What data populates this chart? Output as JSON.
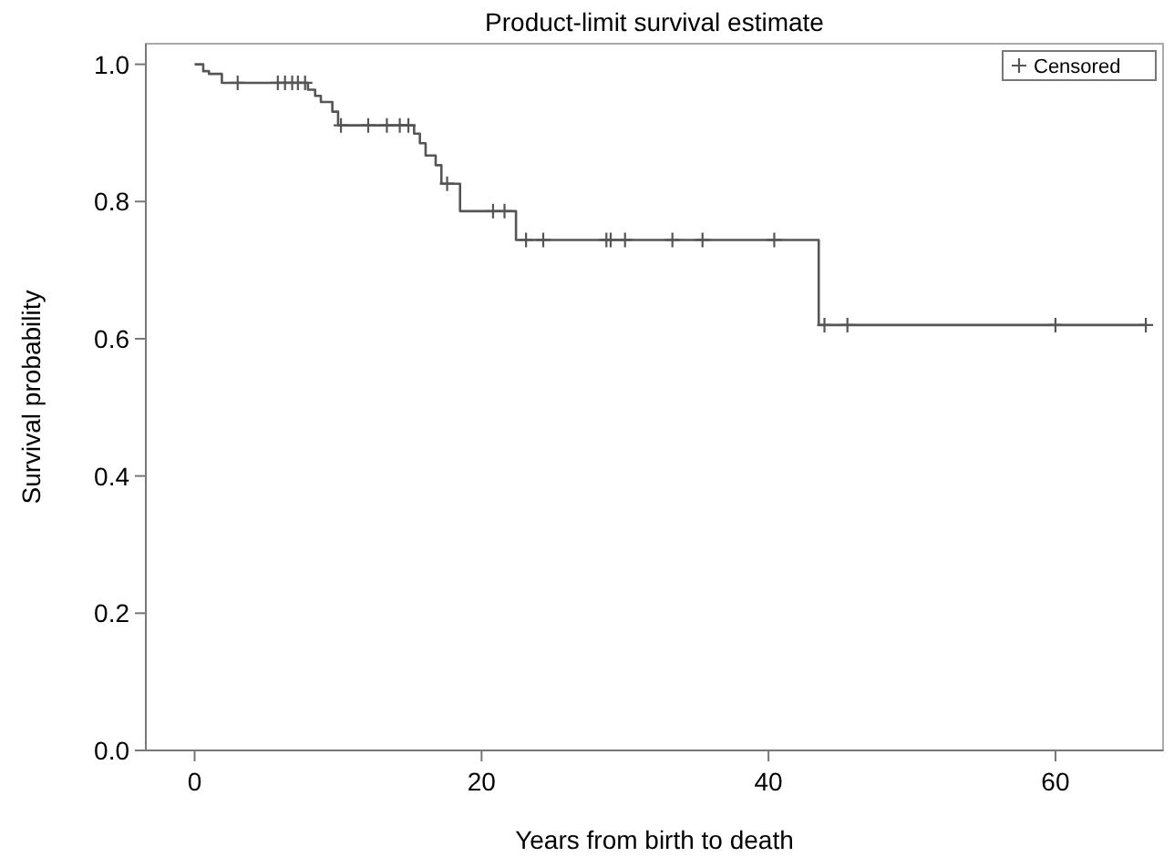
{
  "chart_data": {
    "type": "step",
    "title": "Product-limit survival estimate",
    "xlabel": "Years from birth to death",
    "ylabel": "Survival probability",
    "xlim": [
      -3.4,
      67.5
    ],
    "xticks": [
      0,
      20,
      40,
      60
    ],
    "ylim": [
      0,
      1.03
    ],
    "yticks": [
      {
        "value": 0,
        "label": "0.0"
      },
      {
        "value": 0.2,
        "label": "0.2"
      },
      {
        "value": 0.4,
        "label": "0.4"
      },
      {
        "value": 0.6,
        "label": "0.6"
      },
      {
        "value": 0.8,
        "label": "0.8"
      },
      {
        "value": 1,
        "label": "1.0"
      }
    ],
    "grid": false,
    "legend": "top right",
    "series": [
      {
        "color": "#555555",
        "x": [
          0,
          0.6,
          1.0,
          1.9,
          7.9,
          8.4,
          8.8,
          9.6,
          10.0,
          15.3,
          15.7,
          16.1,
          16.8,
          17.2,
          18.5,
          22.4,
          43.5,
          66.3
        ],
        "values": [
          1,
          0.99,
          0.986,
          0.973,
          0.963,
          0.954,
          0.945,
          0.931,
          0.911,
          0.899,
          0.885,
          0.867,
          0.853,
          0.826,
          0.786,
          0.744,
          0.62,
          0.62
        ]
      },
      {
        "type": "scatter",
        "name": "Censored",
        "marker": "cross",
        "color": "#555555",
        "x": [
          3.0,
          5.8,
          6.3,
          6.8,
          7.2,
          7.7,
          10.2,
          12.1,
          13.4,
          14.3,
          14.9,
          17.6,
          20.8,
          21.6,
          23.1,
          24.3,
          28.7,
          29,
          30,
          33.3,
          35.4,
          40.4,
          43.9,
          45.5,
          60,
          66.3
        ],
        "values": [
          0.973,
          0.973,
          0.973,
          0.973,
          0.973,
          0.973,
          0.911,
          0.911,
          0.911,
          0.911,
          0.911,
          0.826,
          0.786,
          0.786,
          0.744,
          0.744,
          0.744,
          0.744,
          0.744,
          0.744,
          0.744,
          0.744,
          0.62,
          0.62,
          0.62,
          0.62
        ]
      }
    ]
  }
}
